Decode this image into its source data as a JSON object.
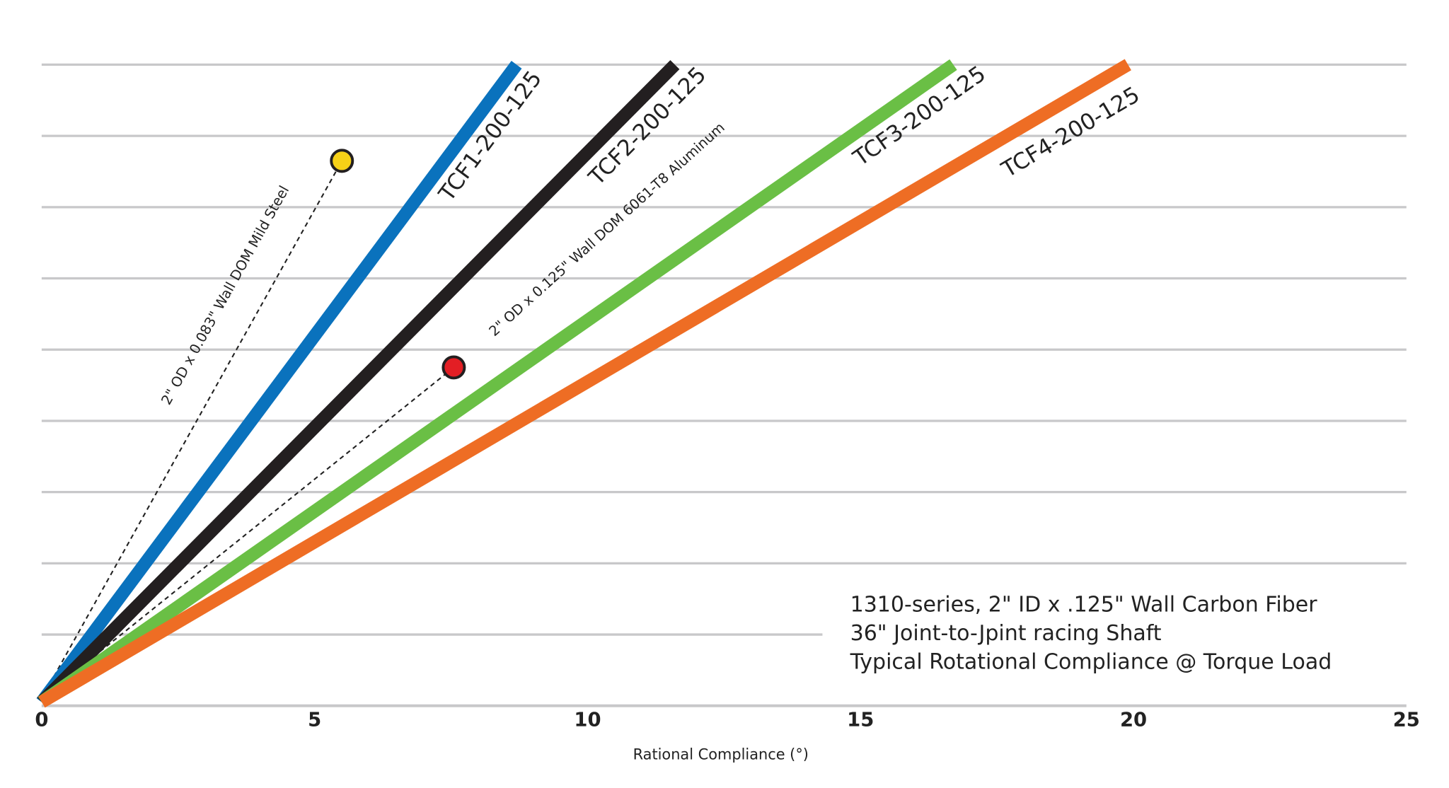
{
  "chart_data": {
    "type": "line",
    "xlabel": "Rational Compliance (°)",
    "ylabel": "",
    "xlim": [
      0,
      25
    ],
    "ylim": [
      0,
      9
    ],
    "x_ticks": [
      "0",
      "5",
      "10",
      "15",
      "20",
      "25"
    ],
    "grid": true,
    "series": [
      {
        "name": "TCF1-200-125",
        "color": "#0a72bd",
        "x": [
          0,
          8.7
        ],
        "y": [
          0,
          9
        ]
      },
      {
        "name": "TCF2-200-125",
        "color": "#231f20",
        "x": [
          0,
          11.6
        ],
        "y": [
          0,
          9
        ]
      },
      {
        "name": "TCF3-200-125",
        "color": "#6abf45",
        "x": [
          0,
          16.7
        ],
        "y": [
          0,
          9
        ]
      },
      {
        "name": "TCF4-200-125",
        "color": "#ee6d24",
        "x": [
          0,
          19.9
        ],
        "y": [
          0,
          9
        ]
      }
    ],
    "points": [
      {
        "name": "2\" OD x 0.083\" Wall DOM Mild Steel",
        "color": "#f7d117",
        "x": 5.5,
        "y": 7.65
      },
      {
        "name": "2\" OD x 0.125\" Wall DOM 6061-T8 Aluminum",
        "color": "#e31e24",
        "x": 7.55,
        "y": 4.75
      }
    ],
    "annotation": [
      "1310-series, 2\" ID x .125\" Wall Carbon Fiber",
      "36\" Joint-to-Jpint racing Shaft",
      "Typical Rotational Compliance @ Torque Load"
    ]
  }
}
